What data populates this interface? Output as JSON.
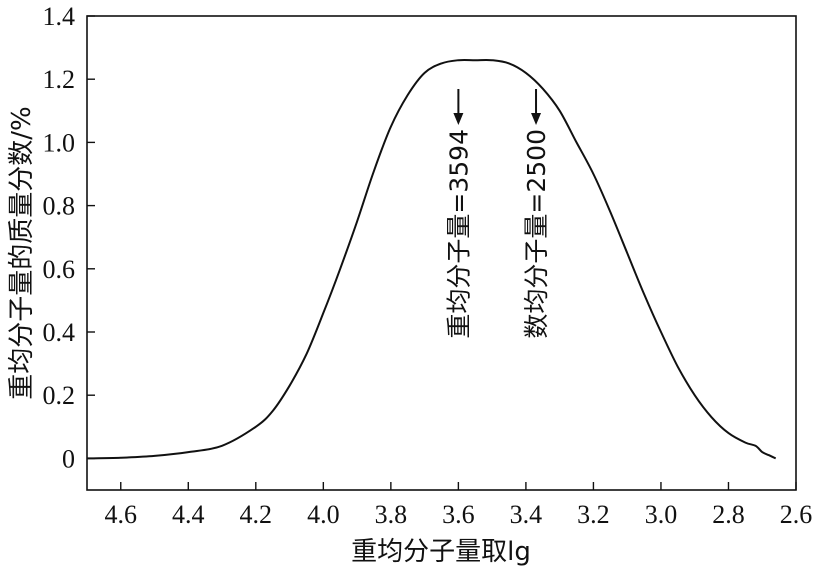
{
  "chart_data": {
    "type": "line",
    "title": "",
    "xlabel": "重均分子量取lg",
    "ylabel": "重均分子量的质量分数/%",
    "xlim": [
      4.7,
      2.6
    ],
    "ylim": [
      -0.1,
      1.4
    ],
    "x_reversed": true,
    "grid": false,
    "xticks": [
      4.6,
      4.4,
      4.2,
      4.0,
      3.8,
      3.6,
      3.4,
      3.2,
      3.0,
      2.8,
      2.6
    ],
    "xtick_labels": [
      "4.6",
      "4.4",
      "4.2",
      "4.0",
      "3.8",
      "3.6",
      "3.4",
      "3.2",
      "3.0",
      "2.8",
      "2.6"
    ],
    "yticks": [
      0,
      0.2,
      0.4,
      0.6,
      0.8,
      1.0,
      1.2,
      1.4
    ],
    "ytick_labels": [
      "0",
      "0.2",
      "0.4",
      "0.6",
      "0.8",
      "1.0",
      "1.2",
      "1.4"
    ],
    "series": [
      {
        "x": [
          4.7,
          4.6,
          4.5,
          4.4,
          4.3,
          4.2,
          4.15,
          4.1,
          4.05,
          4.0,
          3.95,
          3.9,
          3.85,
          3.8,
          3.75,
          3.7,
          3.65,
          3.6,
          3.55,
          3.5,
          3.45,
          3.4,
          3.35,
          3.3,
          3.25,
          3.2,
          3.15,
          3.1,
          3.05,
          3.0,
          2.95,
          2.9,
          2.85,
          2.8,
          2.75,
          2.72,
          2.7,
          2.68,
          2.66
        ],
        "y": [
          0.0,
          0.002,
          0.008,
          0.02,
          0.04,
          0.1,
          0.15,
          0.23,
          0.33,
          0.46,
          0.6,
          0.75,
          0.91,
          1.05,
          1.15,
          1.22,
          1.25,
          1.26,
          1.26,
          1.26,
          1.25,
          1.22,
          1.17,
          1.1,
          1.0,
          0.9,
          0.78,
          0.65,
          0.52,
          0.4,
          0.29,
          0.2,
          0.13,
          0.08,
          0.05,
          0.04,
          0.02,
          0.01,
          0.0
        ]
      }
    ],
    "annotations": [
      {
        "text": "重均分子量=3594",
        "x": 3.6
      },
      {
        "text": "数均分子量=2500",
        "x": 3.37
      }
    ]
  }
}
